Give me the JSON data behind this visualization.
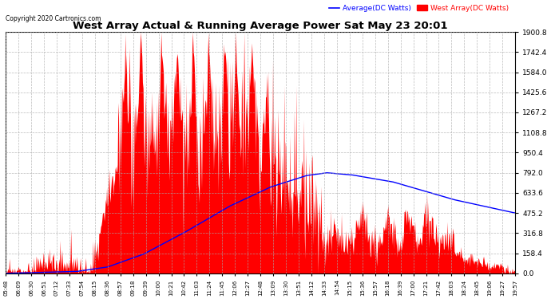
{
  "title": "West Array Actual & Running Average Power Sat May 23 20:01",
  "copyright": "Copyright 2020 Cartronics.com",
  "legend_avg": "Average(DC Watts)",
  "legend_west": "West Array(DC Watts)",
  "ymax": 1900.8,
  "ymin": 0.0,
  "yticks": [
    0.0,
    158.4,
    316.8,
    475.2,
    633.6,
    792.0,
    950.4,
    1108.8,
    1267.2,
    1425.6,
    1584.0,
    1742.4,
    1900.8
  ],
  "background_color": "#ffffff",
  "grid_color": "#aaaaaa",
  "fill_color": "#ff0000",
  "line_color": "#0000ff",
  "title_color": "#000000",
  "copyright_color": "#000000",
  "legend_avg_color": "#0000ff",
  "legend_west_color": "#ff0000",
  "x_labels": [
    "05:48",
    "06:09",
    "06:30",
    "06:51",
    "07:12",
    "07:33",
    "07:54",
    "08:15",
    "08:36",
    "08:57",
    "09:18",
    "09:39",
    "10:00",
    "10:21",
    "10:42",
    "11:03",
    "11:24",
    "11:45",
    "12:06",
    "12:27",
    "12:48",
    "13:09",
    "13:30",
    "13:51",
    "14:12",
    "14:33",
    "14:54",
    "15:15",
    "15:36",
    "15:57",
    "16:18",
    "16:39",
    "17:00",
    "17:21",
    "17:42",
    "18:03",
    "18:24",
    "18:45",
    "19:06",
    "19:27",
    "19:57"
  ],
  "figwidth": 6.9,
  "figheight": 3.75,
  "dpi": 100
}
